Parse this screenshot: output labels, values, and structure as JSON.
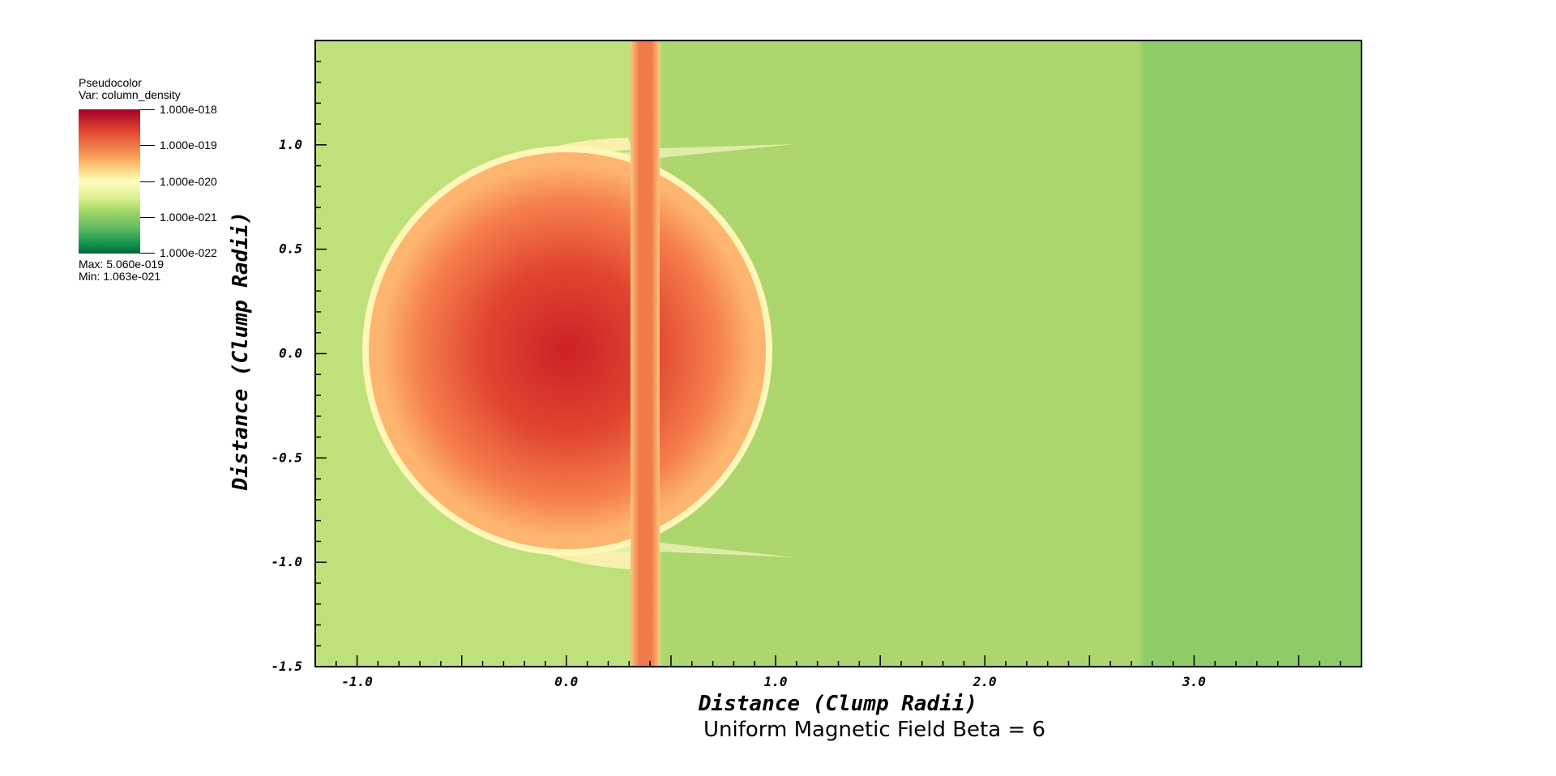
{
  "legend": {
    "plot_type": "Pseudocolor",
    "variable": "Var: column_density",
    "ticks": [
      "1.000e-018",
      "1.000e-019",
      "1.000e-020",
      "1.000e-021",
      "1.000e-022"
    ],
    "max": "Max:  5.060e-019",
    "min": "Min:  1.063e-021",
    "colormap": [
      "#a50026",
      "#e0452f",
      "#f89b58",
      "#fde18e",
      "#ffffbf",
      "#d9ef8b",
      "#a6d96a",
      "#66bd63",
      "#1a9850",
      "#006837"
    ]
  },
  "caption": "Uniform Magnetic Field Beta = 6",
  "chart_data": {
    "type": "heatmap",
    "title": "",
    "xlabel": "Distance (Clump Radii)",
    "ylabel": "Distance (Clump Radii)",
    "xlim": [
      -1.2,
      3.8
    ],
    "ylim": [
      -1.5,
      1.5
    ],
    "x_ticks": [
      -1.0,
      0.0,
      1.0,
      2.0,
      3.0
    ],
    "x_tick_labels": [
      "-1.0",
      "0.0",
      "1.0",
      "2.0",
      "3.0"
    ],
    "y_ticks": [
      1.0,
      0.5,
      0.0,
      -0.5,
      -1.0,
      -1.5
    ],
    "y_tick_labels": [
      "1.0",
      "0.5",
      "0.0",
      "-0.5",
      "-1.0",
      "-1.5"
    ],
    "color_scale": "log",
    "color_range": [
      1e-22,
      1e-18
    ],
    "data_max": 5.06e-19,
    "data_min": 1.063e-21,
    "features": {
      "clump": {
        "center_x": 0.0,
        "center_y": 0.0,
        "radius": 1.0,
        "peak": 5.06e-19
      },
      "vertical_filament_x": [
        0.33,
        0.45
      ],
      "background_level": 1.6e-21,
      "downstream_step_x": 2.73,
      "downstream_level": 1.1e-21
    }
  }
}
